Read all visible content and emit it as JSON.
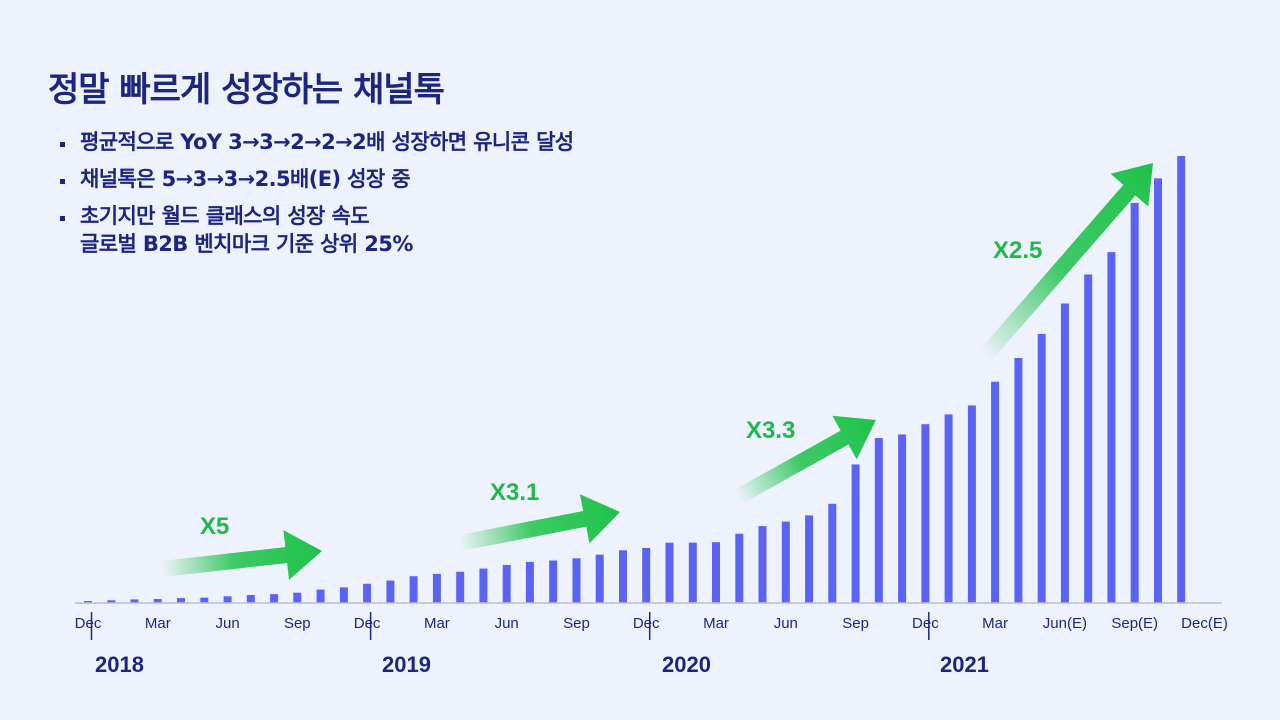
{
  "title": "정말 빠르게 성장하는 채널톡",
  "bullets": [
    {
      "lines": [
        "평균적으로 YoY 3→3→2→2→2배 성장하면 유니콘 달성"
      ]
    },
    {
      "lines": [
        "채널톡은 5→3→3→2.5배(E) 성장 중"
      ]
    },
    {
      "lines": [
        "초기지만 월드 클래스의 성장 속도",
        "글로벌 B2B 벤치마크 기준 상위 25%"
      ]
    }
  ],
  "colors": {
    "bar": "#5b63f5",
    "arrow": "#1fc24a",
    "text": "#1c2680",
    "background": "#eef2fd"
  },
  "chart_data": {
    "type": "bar",
    "x_tick_labels": [
      "Dec",
      "Mar",
      "Jun",
      "Sep",
      "Dec",
      "Mar",
      "Jun",
      "Sep",
      "Dec",
      "Mar",
      "Jun",
      "Sep",
      "Dec",
      "Mar",
      "Jun(E)",
      "Sep(E)",
      "Dec(E)"
    ],
    "year_labels": [
      "2018",
      "2019",
      "2020",
      "2021"
    ],
    "values": [
      0.4,
      0.6,
      0.8,
      0.9,
      1.1,
      1.2,
      1.5,
      1.8,
      2.0,
      2.3,
      3.0,
      3.5,
      4.3,
      5.0,
      6.0,
      6.5,
      7.0,
      7.7,
      8.5,
      9.2,
      9.5,
      10.0,
      10.8,
      11.8,
      12.3,
      13.5,
      13.5,
      13.6,
      15.5,
      17.2,
      18.2,
      19.6,
      22.2,
      31.0,
      36.9,
      37.7,
      40.0,
      42.2,
      44.2,
      49.5,
      54.8,
      60.2,
      67.0,
      73.5,
      78.5,
      89.5,
      95.0,
      100.0
    ],
    "ylim": [
      0,
      100
    ],
    "growth_annotations": [
      "X5",
      "X3.1",
      "X3.3",
      "X2.5"
    ],
    "grid": false,
    "legend": "none"
  }
}
